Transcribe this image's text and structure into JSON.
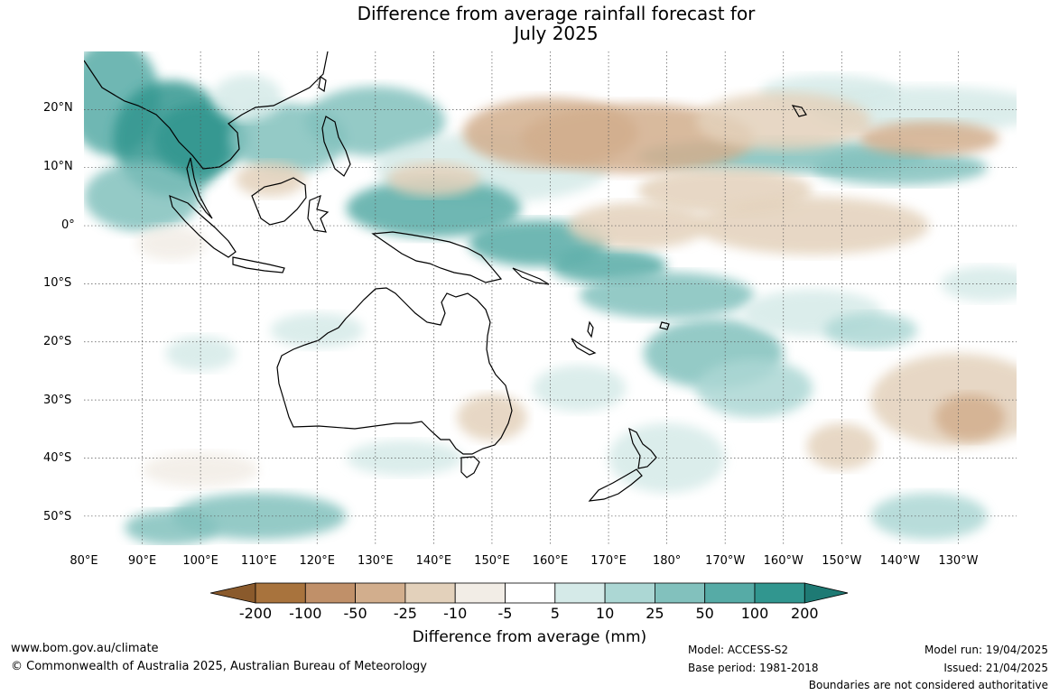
{
  "title": {
    "line1": "Difference from average rainfall forecast for",
    "line2": "July 2025"
  },
  "map": {
    "projection": "equirectangular",
    "lon_range": [
      80,
      240
    ],
    "lat_range": [
      -55,
      30
    ],
    "gridlines": true,
    "lat_labels": [
      "20°N",
      "10°N",
      "0°",
      "10°S",
      "20°S",
      "30°S",
      "40°S",
      "50°S"
    ],
    "lon_labels": [
      "80°E",
      "90°E",
      "100°E",
      "110°E",
      "120°E",
      "130°E",
      "140°E",
      "150°E",
      "160°E",
      "170°E",
      "180°",
      "170°W",
      "160°W",
      "150°W",
      "140°W",
      "130°W"
    ],
    "boundaries_note": "Boundaries are not considered authoritative"
  },
  "legend": {
    "tick_labels": [
      "-200",
      "-100",
      "-50",
      "-25",
      "-10",
      "-5",
      "5",
      "10",
      "25",
      "50",
      "100",
      "200"
    ],
    "label": "Difference from average (mm)",
    "colors": {
      "lt_-200": "#8a5a2c",
      "-200_-100": "#a8733d",
      "-100_-50": "#c09069",
      "-50_-25": "#d2ae8d",
      "-25_-10": "#e3d1bb",
      "-10_-5": "#f2ede6",
      "-5_5": "#ffffff",
      "5_10": "#d5eae8",
      "10_25": "#acd7d4",
      "25_50": "#82c1bd",
      "50_100": "#56aba6",
      "100_200": "#31968f",
      "gt_200": "#1e7a74"
    }
  },
  "footer": {
    "website": "www.bom.gov.au/climate",
    "copyright": "© Commonwealth of Australia 2025, Australian Bureau of Meteorology",
    "model": "Model: ACCESS-S2",
    "base_period": "Base period: 1981-2018",
    "model_run": "Model run: 19/04/2025",
    "issued": "Issued: 21/04/2025",
    "disclaimer": "Boundaries are not considered authoritative"
  }
}
